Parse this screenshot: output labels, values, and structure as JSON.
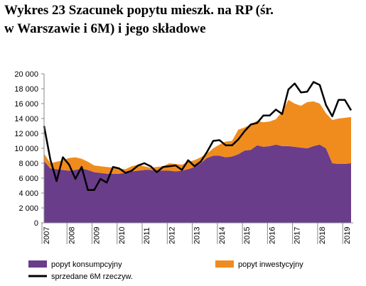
{
  "chart_data": {
    "type": "stacked-area-line",
    "title": [
      "Wykres 23 Szacunek popytu mieszk. na RP (śr.",
      "w Warszawie i 6M) i jego składowe"
    ],
    "categories": [
      "2007",
      null,
      null,
      null,
      "2008",
      null,
      null,
      null,
      "2009",
      null,
      null,
      null,
      "2010",
      null,
      null,
      null,
      "2011",
      null,
      null,
      null,
      "2012",
      null,
      null,
      null,
      "2013",
      null,
      null,
      null,
      "2014",
      null,
      null,
      null,
      "2015",
      null,
      null,
      null,
      "2016",
      null,
      null,
      null,
      "2017",
      null,
      null,
      null,
      "2018",
      null,
      null,
      null,
      "2019",
      null
    ],
    "series": [
      {
        "name": "popyt konsumpcyjny",
        "color": "#6a3d8a",
        "kind": "area",
        "values": [
          8300,
          7300,
          7200,
          7100,
          7000,
          7100,
          7300,
          7100,
          6800,
          6700,
          6600,
          6600,
          6600,
          6700,
          6900,
          7000,
          7100,
          7100,
          7000,
          7000,
          7000,
          6900,
          7000,
          7200,
          7500,
          8000,
          8700,
          9000,
          9000,
          8800,
          8900,
          9200,
          9700,
          9800,
          10400,
          10200,
          10300,
          10500,
          10300,
          10300,
          10200,
          10100,
          10000,
          10300,
          10500,
          10000,
          8000,
          7900,
          7900,
          8000
        ]
      },
      {
        "name": "popyt inwestycyjny",
        "color": "#f08c1e",
        "kind": "area",
        "values": [
          1000,
          700,
          1000,
          1300,
          1700,
          1700,
          1300,
          1100,
          900,
          900,
          900,
          800,
          700,
          500,
          700,
          800,
          500,
          300,
          500,
          600,
          1000,
          1000,
          800,
          1000,
          900,
          800,
          600,
          1000,
          1500,
          2100,
          2100,
          3300,
          3100,
          3400,
          3300,
          3300,
          3300,
          3400,
          4600,
          6200,
          5800,
          5600,
          6200,
          6000,
          5500,
          4700,
          5800,
          6100,
          6200,
          6200
        ]
      },
      {
        "name": "sprzedane 6M rzeczyw.",
        "color": "#000000",
        "kind": "line",
        "values": [
          13000,
          8500,
          5600,
          8800,
          7800,
          5900,
          7500,
          4400,
          4400,
          5900,
          5400,
          7500,
          7300,
          6700,
          7000,
          7700,
          8000,
          7600,
          6800,
          7500,
          7600,
          7700,
          7100,
          8400,
          7600,
          8200,
          9500,
          11000,
          11100,
          10400,
          10400,
          11200,
          12300,
          13200,
          13400,
          14400,
          14400,
          15200,
          14600,
          17900,
          18700,
          17500,
          17600,
          18900,
          18500,
          15800,
          14300,
          16500,
          16500,
          15100
        ]
      }
    ],
    "ylim": [
      0,
      20000
    ],
    "yticks": [
      0,
      {
        "value": 2000,
        "label": "2 000"
      },
      {
        "value": 4000,
        "label": "4 000"
      },
      {
        "value": 6000,
        "label": "6 000"
      },
      {
        "value": 8000,
        "label": "8 000"
      },
      {
        "value": 10000,
        "label": "10 000"
      },
      {
        "value": 12000,
        "label": "12 000"
      },
      {
        "value": 14000,
        "label": "14 000"
      },
      {
        "value": 16000,
        "label": "16 000"
      },
      {
        "value": 18000,
        "label": "18 000"
      },
      {
        "value": 20000,
        "label": "20 000"
      }
    ],
    "grid": false
  }
}
